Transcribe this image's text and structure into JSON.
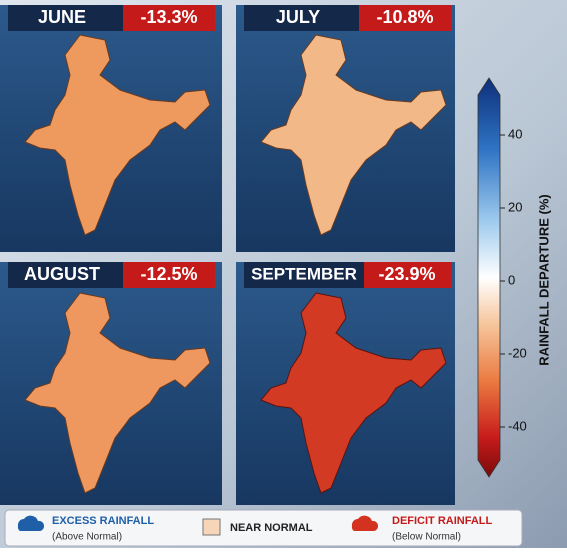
{
  "panels": [
    {
      "month": "JUNE",
      "departure": "-13.3%"
    },
    {
      "month": "JULY",
      "departure": "-10.8%"
    },
    {
      "month": "AUGUST",
      "departure": "-12.5%"
    },
    {
      "month": "SEPTEMBER",
      "departure": "-23.9%"
    }
  ],
  "colorbar": {
    "title": "RAINFALL DEPARTURE (%)",
    "ticks": [
      40,
      20,
      0,
      -20,
      -40
    ]
  },
  "legend": [
    {
      "label": "EXCESS RAINFALL",
      "note": "(Above Normal)"
    },
    {
      "label": "NEAR NORMAL"
    },
    {
      "label": "DEFICIT RAINFALL",
      "note": "(Below Normal)"
    }
  ]
}
